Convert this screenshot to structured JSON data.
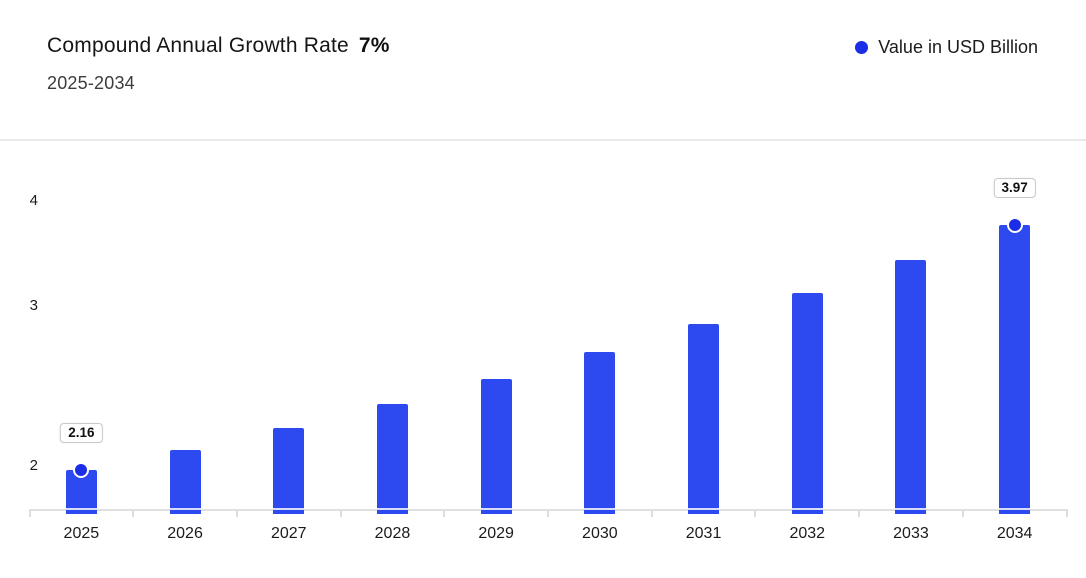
{
  "header": {
    "title": "Compound Annual Growth Rate",
    "title_highlight": "7%",
    "subtitle": "2025-2034",
    "legend": {
      "label": "Value in USD Billion"
    }
  },
  "colors": {
    "bar": "#2d49f0",
    "marker": "#1b2ee6",
    "axis_line": "#e0e0e0",
    "divider": "#e9e9e9",
    "label_box_border": "#c9c9c9"
  },
  "chart_data": {
    "type": "bar",
    "title": "Compound Annual Growth Rate 7%",
    "subtitle": "2025-2034",
    "categories": [
      "2025",
      "2026",
      "2027",
      "2028",
      "2029",
      "2030",
      "2031",
      "2032",
      "2033",
      "2034"
    ],
    "series": [
      {
        "name": "Value in USD Billion",
        "values": [
          2.16,
          2.31,
          2.47,
          2.65,
          2.83,
          3.03,
          3.24,
          3.47,
          3.71,
          3.97
        ]
      }
    ],
    "y_ticks": [
      "4",
      "3",
      "2"
    ],
    "ylim": [
      1.84,
      4.6
    ],
    "xlabel": "",
    "ylabel": "",
    "grid": false,
    "legend_position": "top-right",
    "annotations": [
      {
        "category": "2025",
        "value": 2.16,
        "label": "2.16",
        "marker": true
      },
      {
        "category": "2034",
        "value": 3.97,
        "label": "3.97",
        "marker": true
      }
    ]
  }
}
